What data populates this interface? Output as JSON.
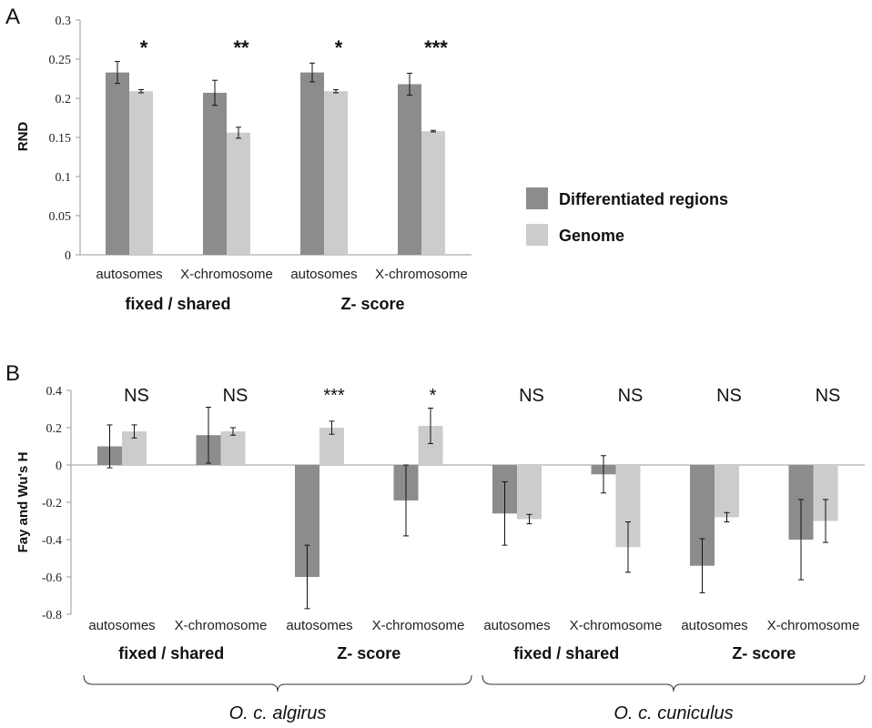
{
  "colors": {
    "differentiated": "#8c8c8c",
    "genome": "#cccccc",
    "axis": "#9a9a9a",
    "error": "#111111"
  },
  "legend": {
    "differentiated": "Differentiated regions",
    "genome": "Genome"
  },
  "chart_data": [
    {
      "panel": "A",
      "type": "bar",
      "ylabel": "RND",
      "ylim": [
        0,
        0.3
      ],
      "yticks": [
        0,
        0.05,
        0.1,
        0.15,
        0.2,
        0.25,
        0.3
      ],
      "ytick_labels": [
        "0",
        "0.05",
        "0.1",
        "0.15",
        "0.2",
        "0.25",
        "0.3"
      ],
      "categories": [
        "autosomes",
        "X-chromosome",
        "autosomes",
        "X-chromosome"
      ],
      "groups": [
        "fixed / shared",
        "Z- score"
      ],
      "series": [
        {
          "name": "Differentiated regions",
          "values": [
            0.233,
            0.207,
            0.233,
            0.218
          ],
          "errors": [
            0.014,
            0.016,
            0.012,
            0.014
          ]
        },
        {
          "name": "Genome",
          "values": [
            0.209,
            0.156,
            0.209,
            0.158
          ],
          "errors": [
            0.002,
            0.007,
            0.002,
            0.001
          ]
        }
      ],
      "significance": [
        "*",
        "**",
        "*",
        "***"
      ]
    },
    {
      "panel": "B",
      "type": "bar",
      "ylabel": "Fay and Wu's H",
      "ylim": [
        -0.8,
        0.4
      ],
      "yticks": [
        0.4,
        0.2,
        0,
        -0.2,
        -0.4,
        -0.6,
        -0.8
      ],
      "ytick_labels": [
        "0.4",
        "0.2",
        "0",
        "-0.2",
        "-0.4",
        "-0.6",
        "-0.8"
      ],
      "categories": [
        "autosomes",
        "X-chromosome",
        "autosomes",
        "X-chromosome",
        "autosomes",
        "X-chromosome",
        "autosomes",
        "X-chromosome"
      ],
      "groups": [
        "fixed / shared",
        "Z- score",
        "fixed / shared",
        "Z- score"
      ],
      "subspecies": [
        "O. c. algirus",
        "O. c. cuniculus"
      ],
      "series": [
        {
          "name": "Differentiated regions",
          "values": [
            0.1,
            0.16,
            -0.6,
            -0.19,
            -0.26,
            -0.05,
            -0.54,
            -0.4
          ],
          "errors": [
            0.115,
            0.15,
            0.17,
            0.19,
            0.17,
            0.1,
            0.145,
            0.215
          ]
        },
        {
          "name": "Genome",
          "values": [
            0.18,
            0.18,
            0.2,
            0.21,
            -0.29,
            -0.44,
            -0.28,
            -0.3
          ],
          "errors": [
            0.035,
            0.02,
            0.035,
            0.095,
            0.025,
            0.135,
            0.025,
            0.115
          ]
        }
      ],
      "significance": [
        "NS",
        "NS",
        "***",
        "*",
        "NS",
        "NS",
        "NS",
        "NS"
      ]
    }
  ]
}
